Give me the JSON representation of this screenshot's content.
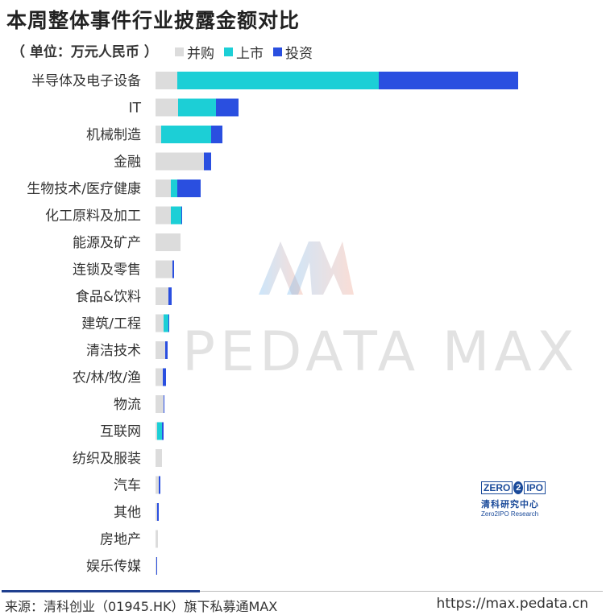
{
  "title": "本周整体事件行业披露金额对比",
  "unit_label": "（ 单位：万元人民币 ）",
  "footer": {
    "source": "来源：清科创业（01945.HK）旗下私募通MAX",
    "url": "https://max.pedata.cn"
  },
  "watermark": "PEDATA MAX",
  "brand": {
    "zero": "ZERO",
    "two": "2",
    "ipo": "IPO",
    "cn": "清科研究中心",
    "en": "Zero2IPO Research"
  },
  "colors": {
    "merger": "#dcdcdc",
    "listing": "#1ccfd6",
    "investment": "#2a4fe0"
  },
  "chart_data": {
    "type": "bar",
    "orientation": "horizontal",
    "stacked": true,
    "title": "本周整体事件行业披露金额对比",
    "categories": [
      "半导体及电子设备",
      "IT",
      "机械制造",
      "金融",
      "生物技术/医疗健康",
      "化工原料及加工",
      "能源及矿产",
      "连锁及零售",
      "食品&饮料",
      "建筑/工程",
      "清洁技术",
      "农/林/牧/渔",
      "物流",
      "互联网",
      "纺织及服装",
      "汽车",
      "其他",
      "房地产",
      "娱乐传媒"
    ],
    "series": [
      {
        "name": "并购",
        "values": [
          27,
          28,
          7,
          60,
          19,
          19,
          31,
          21,
          16,
          10,
          12,
          9,
          10,
          2,
          8,
          4,
          2,
          3,
          1
        ]
      },
      {
        "name": "上市",
        "values": [
          250,
          47,
          62,
          0,
          8,
          13,
          0,
          0,
          0,
          6,
          0,
          0,
          0,
          6,
          0,
          0,
          0,
          0,
          0
        ]
      },
      {
        "name": "投资",
        "values": [
          173,
          28,
          14,
          9,
          29,
          1,
          0,
          2,
          4,
          1,
          3,
          4,
          1,
          2,
          0,
          2,
          2,
          0,
          1
        ]
      }
    ],
    "legend_position": "top",
    "grid": false
  }
}
